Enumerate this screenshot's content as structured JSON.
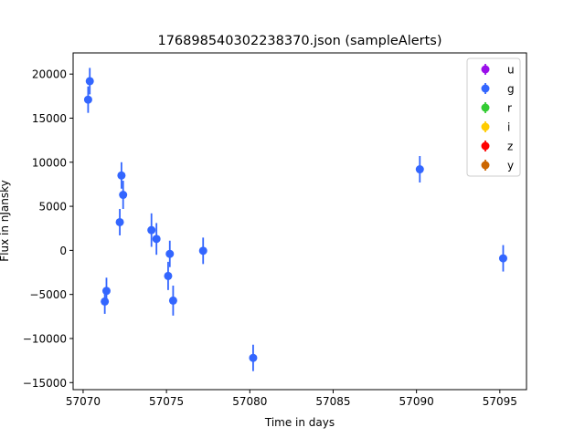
{
  "chart_data": {
    "type": "scatter",
    "title": "176898540302238370.json (sampleAlerts)",
    "xlabel": "Time in days",
    "ylabel": "Flux in nJansky",
    "xlim": [
      57069.4,
      57096.6
    ],
    "ylim": [
      -15800,
      22400
    ],
    "x_ticks": [
      57070,
      57075,
      57080,
      57085,
      57090,
      57095
    ],
    "y_ticks": [
      -15000,
      -10000,
      -5000,
      0,
      5000,
      10000,
      15000,
      20000
    ],
    "x_tick_labels": [
      "57070",
      "57075",
      "57080",
      "57085",
      "57090",
      "57095"
    ],
    "y_tick_labels": [
      "−15000",
      "−10000",
      "−5000",
      "0",
      "5000",
      "10000",
      "15000",
      "20000"
    ],
    "grid": false,
    "legend_position": "top-right",
    "series": [
      {
        "name": "u",
        "color": "#9a0eea",
        "points": []
      },
      {
        "name": "g",
        "color": "#3366ff",
        "points": [
          {
            "x": 57070.3,
            "y": 17100,
            "err": 1500
          },
          {
            "x": 57070.4,
            "y": 19200,
            "err": 1500
          },
          {
            "x": 57071.3,
            "y": -5800,
            "err": 1400
          },
          {
            "x": 57071.4,
            "y": -4600,
            "err": 1500
          },
          {
            "x": 57072.2,
            "y": 3200,
            "err": 1500
          },
          {
            "x": 57072.3,
            "y": 8500,
            "err": 1500
          },
          {
            "x": 57072.4,
            "y": 6300,
            "err": 1600
          },
          {
            "x": 57074.1,
            "y": 2300,
            "err": 1900
          },
          {
            "x": 57074.4,
            "y": 1300,
            "err": 1800
          },
          {
            "x": 57075.1,
            "y": -2900,
            "err": 1600
          },
          {
            "x": 57075.2,
            "y": -400,
            "err": 1500
          },
          {
            "x": 57075.4,
            "y": -5700,
            "err": 1700
          },
          {
            "x": 57077.2,
            "y": -50,
            "err": 1500
          },
          {
            "x": 57080.2,
            "y": -12200,
            "err": 1500
          },
          {
            "x": 57090.2,
            "y": 9200,
            "err": 1500
          },
          {
            "x": 57095.2,
            "y": -900,
            "err": 1500
          }
        ]
      },
      {
        "name": "r",
        "color": "#33cc33",
        "points": []
      },
      {
        "name": "i",
        "color": "#ffcc00",
        "points": []
      },
      {
        "name": "z",
        "color": "#ff0000",
        "points": []
      },
      {
        "name": "y",
        "color": "#cc6600",
        "points": []
      }
    ]
  }
}
